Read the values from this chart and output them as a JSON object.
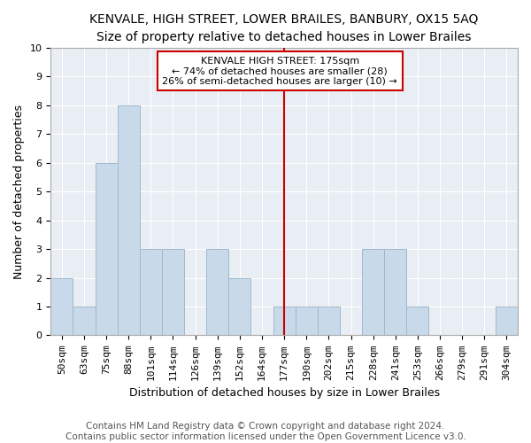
{
  "title": "KENVALE, HIGH STREET, LOWER BRAILES, BANBURY, OX15 5AQ",
  "subtitle": "Size of property relative to detached houses in Lower Brailes",
  "xlabel": "Distribution of detached houses by size in Lower Brailes",
  "ylabel": "Number of detached properties",
  "categories": [
    "50sqm",
    "63sqm",
    "75sqm",
    "88sqm",
    "101sqm",
    "114sqm",
    "126sqm",
    "139sqm",
    "152sqm",
    "164sqm",
    "177sqm",
    "190sqm",
    "202sqm",
    "215sqm",
    "228sqm",
    "241sqm",
    "253sqm",
    "266sqm",
    "279sqm",
    "291sqm",
    "304sqm"
  ],
  "values": [
    2,
    1,
    6,
    8,
    3,
    3,
    0,
    3,
    2,
    0,
    1,
    1,
    1,
    0,
    3,
    3,
    1,
    0,
    0,
    0,
    1
  ],
  "bar_color": "#c8daea",
  "bar_edge_color": "#a0b8cc",
  "vline_x_index": 10,
  "vline_color": "#cc0000",
  "annotation_text": "KENVALE HIGH STREET: 175sqm\n← 74% of detached houses are smaller (28)\n26% of semi-detached houses are larger (10) →",
  "annotation_box_facecolor": "#ffffff",
  "annotation_box_edgecolor": "#cc0000",
  "ylim": [
    0,
    10
  ],
  "yticks": [
    0,
    1,
    2,
    3,
    4,
    5,
    6,
    7,
    8,
    9,
    10
  ],
  "title_fontsize": 10,
  "xlabel_fontsize": 9,
  "ylabel_fontsize": 9,
  "tick_fontsize": 8,
  "annotation_fontsize": 8,
  "footer_line1": "Contains HM Land Registry data © Crown copyright and database right 2024.",
  "footer_line2": "Contains public sector information licensed under the Open Government Licence v3.0.",
  "footer_fontsize": 7.5,
  "fig_bg_color": "#ffffff",
  "plot_bg_color": "#e8eef4",
  "grid_color": "#ffffff",
  "spine_color": "#aaaaaa"
}
